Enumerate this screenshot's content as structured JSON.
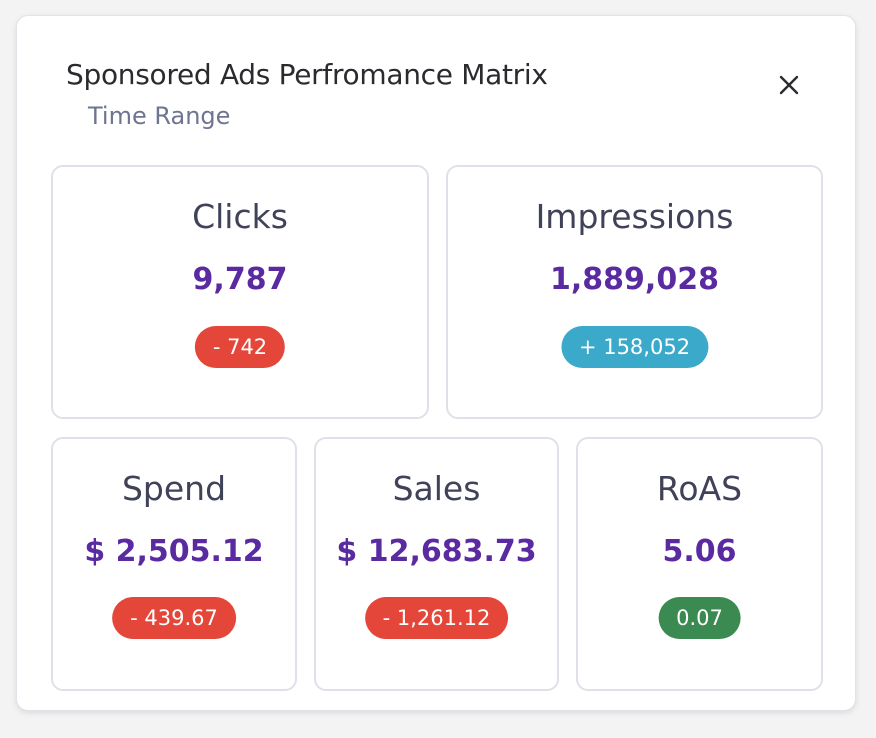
{
  "header": {
    "title": "Sponsored Ads Perfromance Matrix",
    "subtitle": "Time Range",
    "close_icon": "close-icon"
  },
  "metrics": {
    "clicks": {
      "label": "Clicks",
      "value": "9,787",
      "delta": "- 742",
      "delta_color": "#e4473a"
    },
    "impressions": {
      "label": "Impressions",
      "value": "1,889,028",
      "delta": "+ 158,052",
      "delta_color": "#3ba9c9"
    },
    "spend": {
      "label": "Spend",
      "value": "$ 2,505.12",
      "delta": "- 439.67",
      "delta_color": "#e4473a"
    },
    "sales": {
      "label": "Sales",
      "value": "$ 12,683.73",
      "delta": "- 1,261.12",
      "delta_color": "#e4473a"
    },
    "roas": {
      "label": "RoAS",
      "value": "5.06",
      "delta": "0.07",
      "delta_color": "#3a8a52"
    }
  },
  "colors": {
    "value_text": "#5a2aa0",
    "label_text": "#3f4258",
    "subtitle_text": "#6d7590"
  }
}
